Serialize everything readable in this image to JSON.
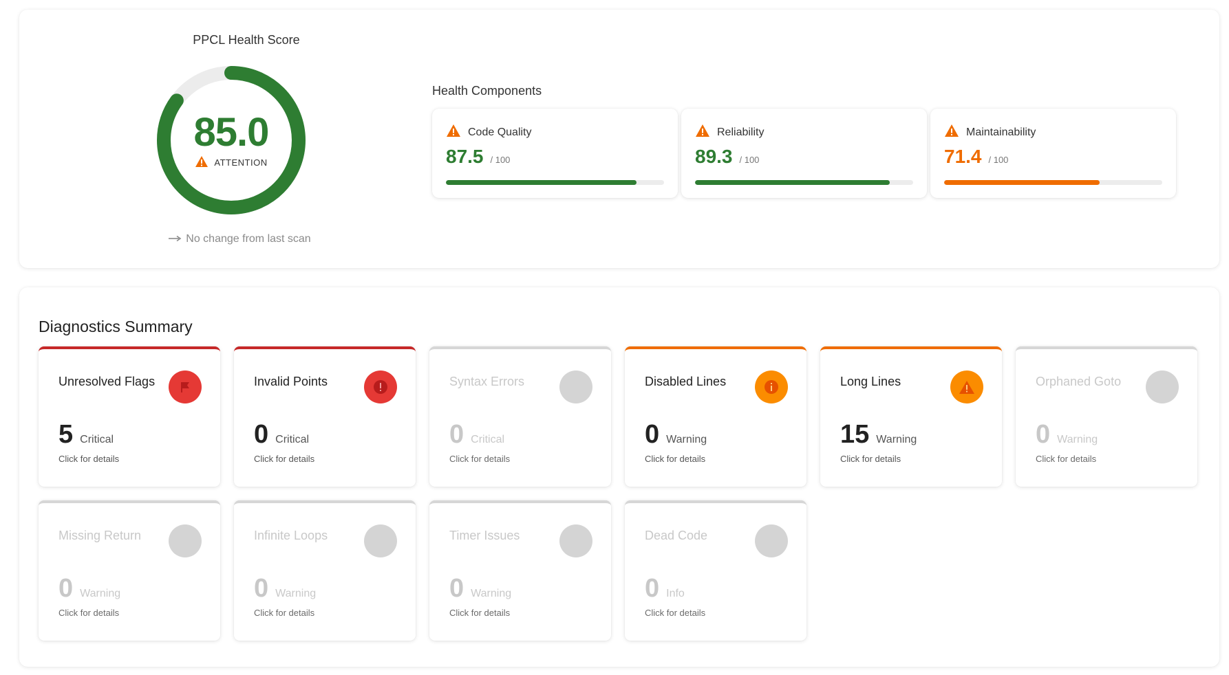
{
  "health": {
    "title": "PPCL Health Score",
    "score": "85.0",
    "score_fraction": 0.85,
    "status": "ATTENTION",
    "change_text": "No change from last scan",
    "colors": {
      "good": "#2e7d32",
      "warning": "#ef6c00",
      "track": "#ececec"
    }
  },
  "components": {
    "title": "Health Components",
    "items": [
      {
        "label": "Code Quality",
        "value": "87.5",
        "max_label": "/ 100",
        "fraction": 0.875,
        "color": "#2e7d32",
        "icon": "warning-triangle-icon"
      },
      {
        "label": "Reliability",
        "value": "89.3",
        "max_label": "/ 100",
        "fraction": 0.893,
        "color": "#2e7d32",
        "icon": "warning-triangle-icon"
      },
      {
        "label": "Maintainability",
        "value": "71.4",
        "max_label": "/ 100",
        "fraction": 0.714,
        "color": "#ef6c00",
        "icon": "warning-triangle-icon"
      }
    ]
  },
  "diagnostics": {
    "title": "Diagnostics Summary",
    "hint": "Click for details",
    "tiles": [
      {
        "name": "Unresolved Flags",
        "count": "5",
        "severity": "Critical",
        "icon": "flag-icon",
        "icon_color": "#e53935"
      },
      {
        "name": "Invalid Points",
        "count": "0",
        "severity": "Critical",
        "icon": "error-icon",
        "icon_color": "#e53935"
      },
      {
        "name": "Syntax Errors",
        "count": "0",
        "severity": "Critical",
        "icon": "empty-circle-icon",
        "icon_color": "#d4d4d4"
      },
      {
        "name": "Disabled Lines",
        "count": "0",
        "severity": "Warning",
        "icon": "info-icon",
        "icon_color": "#fb8c00"
      },
      {
        "name": "Long Lines",
        "count": "15",
        "severity": "Warning",
        "icon": "warning-triangle-icon",
        "icon_color": "#fb8c00"
      },
      {
        "name": "Orphaned Goto",
        "count": "0",
        "severity": "Warning",
        "icon": "empty-circle-icon",
        "icon_color": "#d4d4d4"
      },
      {
        "name": "Missing Return",
        "count": "0",
        "severity": "Warning",
        "icon": "empty-circle-icon",
        "icon_color": "#d4d4d4"
      },
      {
        "name": "Infinite Loops",
        "count": "0",
        "severity": "Warning",
        "icon": "empty-circle-icon",
        "icon_color": "#d4d4d4"
      },
      {
        "name": "Timer Issues",
        "count": "0",
        "severity": "Warning",
        "icon": "empty-circle-icon",
        "icon_color": "#d4d4d4"
      },
      {
        "name": "Dead Code",
        "count": "0",
        "severity": "Info",
        "icon": "empty-circle-icon",
        "icon_color": "#d4d4d4"
      }
    ]
  }
}
